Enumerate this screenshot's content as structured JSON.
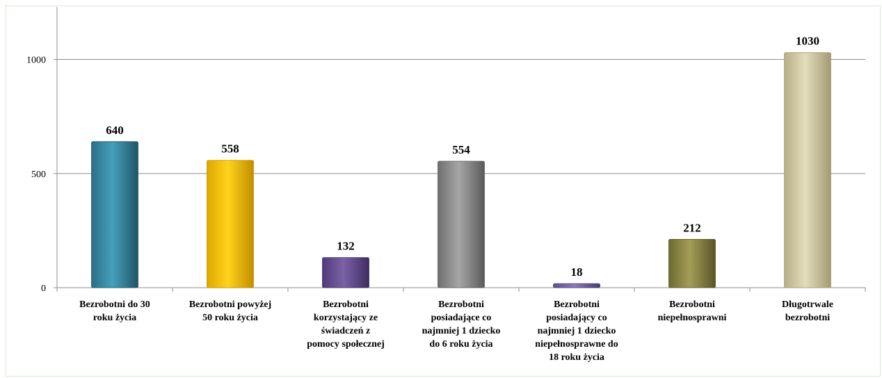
{
  "chart_data": {
    "type": "bar",
    "categories": [
      [
        "Bezrobotni do 30",
        "roku życia"
      ],
      [
        "Bezrobotni powyżej",
        "50 roku życia"
      ],
      [
        "Bezrobotni",
        "korzystający ze",
        "świadczeń z",
        "pomocy społecznej"
      ],
      [
        "Bezrobotni",
        "posiadające co",
        "najmniej 1 dziecko",
        "do 6 roku życia"
      ],
      [
        "Bezrobotni",
        "posiadający co",
        "najmniej 1 dziecko",
        "niepełnosprawne do",
        "18 roku życia"
      ],
      [
        "Bezrobotni",
        "niepełnosprawni"
      ],
      [
        "Długotrwale",
        "bezrobotni"
      ]
    ],
    "values": [
      640,
      558,
      132,
      554,
      18,
      212,
      1030
    ],
    "data_labels": [
      "640",
      "558",
      "132",
      "554",
      "18",
      "212",
      "1030"
    ],
    "yticks": [
      "0",
      "500",
      "1000"
    ],
    "ylim": [
      0,
      1230
    ],
    "grid": true,
    "legend": false,
    "title": "",
    "xlabel": "",
    "ylabel": "",
    "colors": [
      [
        "#2b6f84",
        "#45a0bd",
        "#1f5566"
      ],
      [
        "#e0a800",
        "#ffd21a",
        "#c08f00"
      ],
      [
        "#4f3a78",
        "#7b62a8",
        "#3e2d60"
      ],
      [
        "#6f6f6f",
        "#a6a6a6",
        "#5a5a5a"
      ],
      [
        "#5e4e8c",
        "#8d7cc0",
        "#4a3d70"
      ],
      [
        "#6f6a30",
        "#a39d58",
        "#5a5526"
      ],
      [
        "#b7ae86",
        "#e4ddbc",
        "#a39a72"
      ]
    ]
  }
}
